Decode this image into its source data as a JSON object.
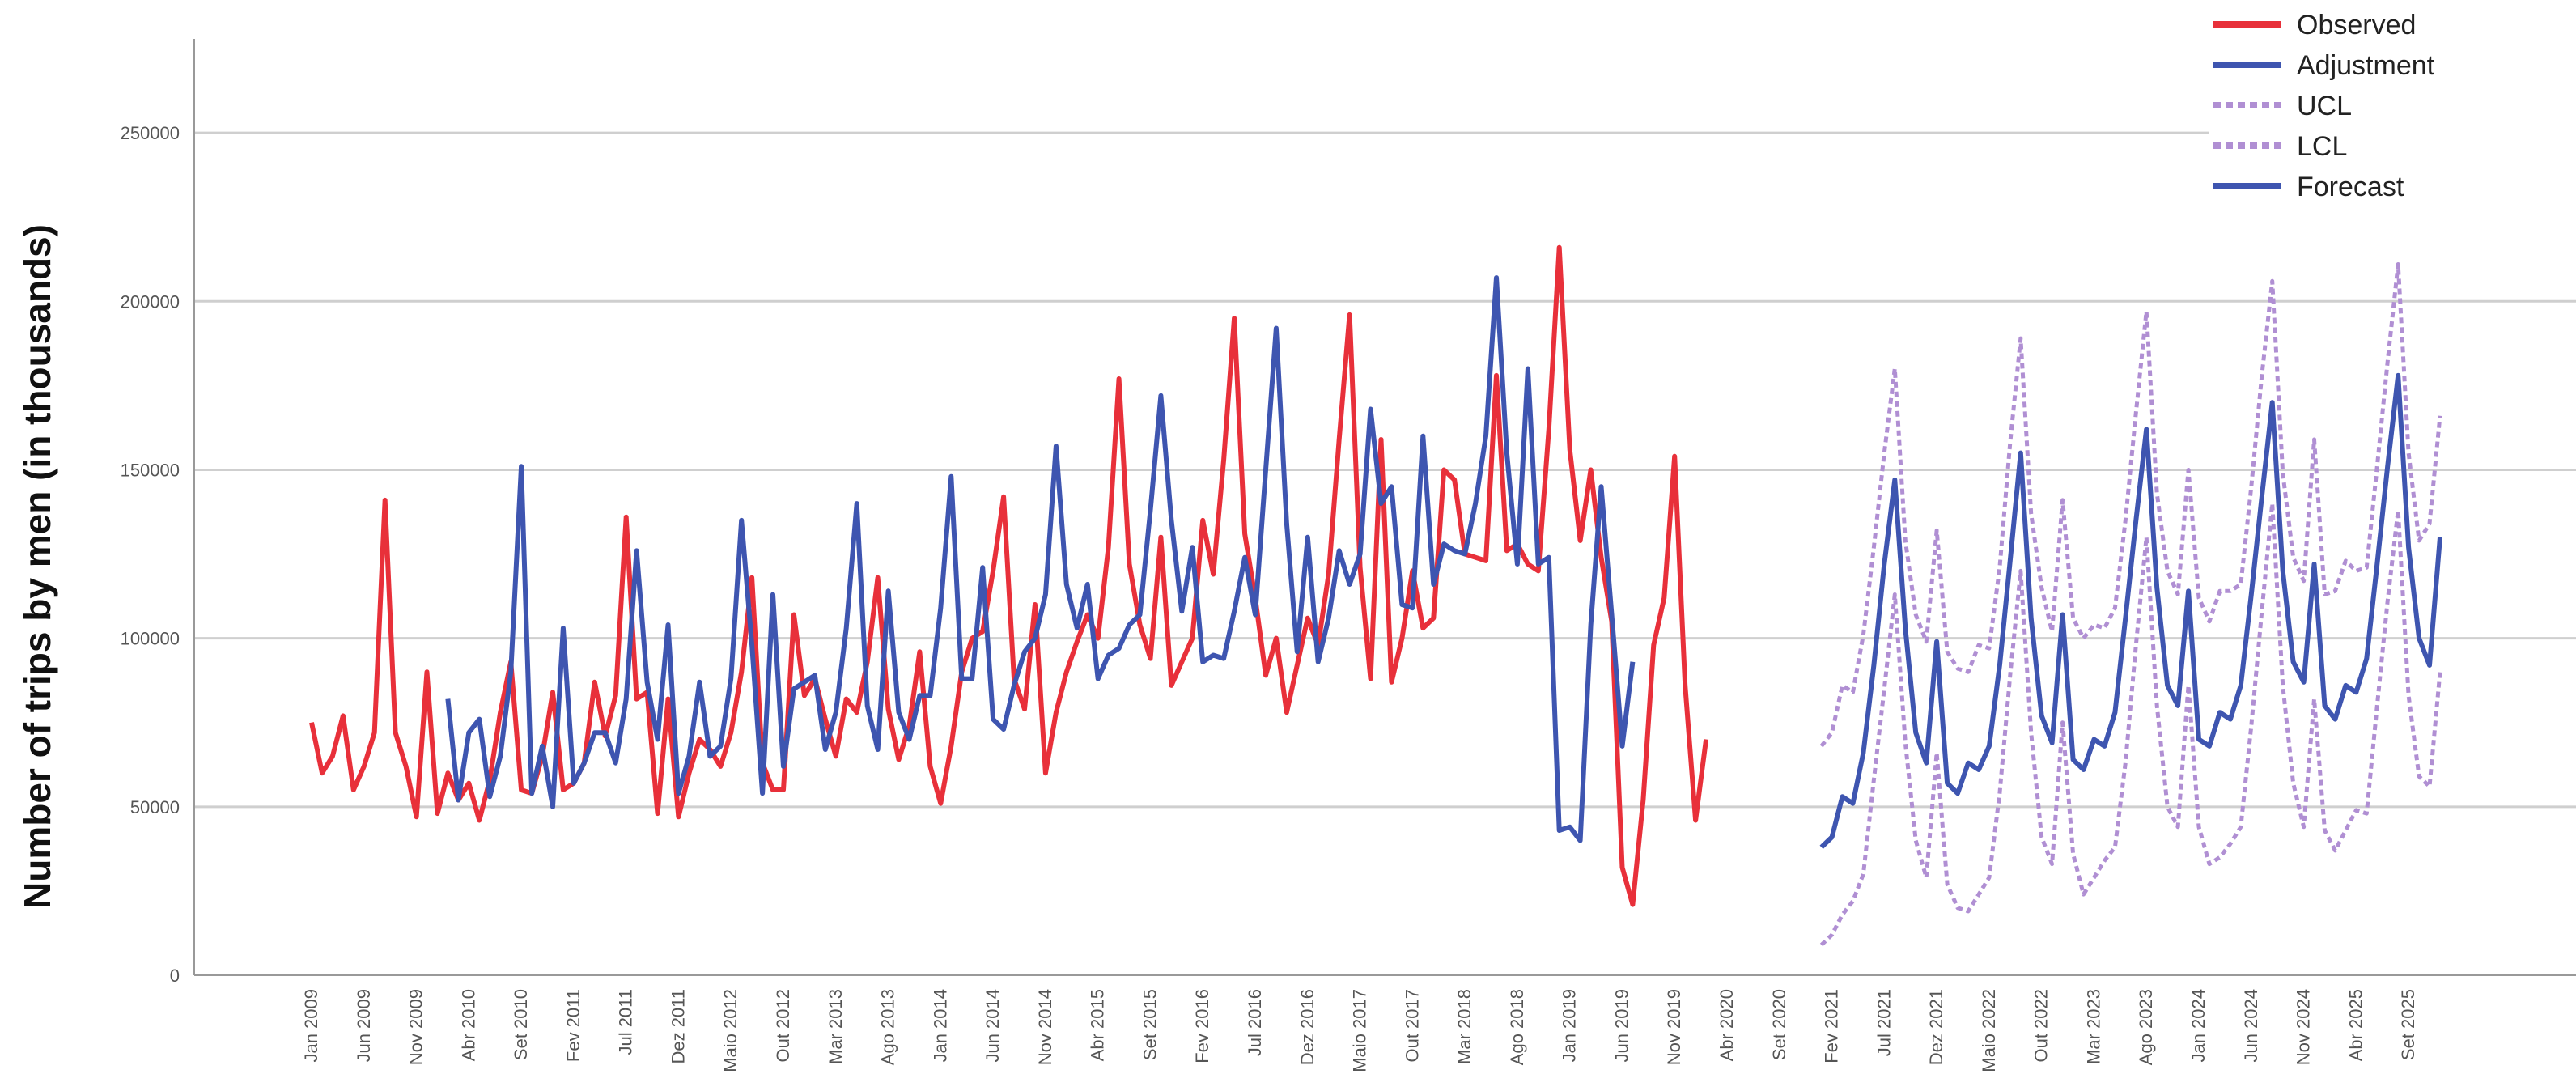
{
  "chart_data": {
    "type": "line",
    "title": "",
    "xlabel": "",
    "ylabel": "Number of trips by men (in thousands)",
    "ylim": [
      0,
      275000
    ],
    "y_ticks": [
      0,
      50000,
      100000,
      150000,
      200000,
      250000
    ],
    "y_tick_labels": [
      "0",
      "50000",
      "100000",
      "150000",
      "200000",
      "250000"
    ],
    "grid": "horizontal",
    "legend_position": "top-right",
    "x_start": "2009-01",
    "x_end": "2025-12",
    "x_tick_labels": [
      "Jan 2009",
      "Jun 2009",
      "Nov 2009",
      "Abr 2010",
      "Set 2010",
      "Fev 2011",
      "Jul 2011",
      "Dez 2011",
      "Maio 2012",
      "Out 2012",
      "Mar 2013",
      "Ago 2013",
      "Jan 2014",
      "Jun 2014",
      "Nov 2014",
      "Abr 2015",
      "Set 2015",
      "Fev 2016",
      "Jul 2016",
      "Dez 2016",
      "Maio 2017",
      "Out 2017",
      "Mar 2018",
      "Ago 2018",
      "Jan 2019",
      "Jun 2019",
      "Nov 2019",
      "Abr 2020",
      "Set 2020",
      "Fev 2021",
      "Jul 2021",
      "Dez 2021",
      "Maio 2022",
      "Out 2022",
      "Mar 2023",
      "Ago 2023",
      "Jan 2024",
      "Jun 2024",
      "Nov 2024",
      "Abr 2025",
      "Set 2025"
    ],
    "colors": {
      "observed": "#e8303a",
      "adjustment": "#3e55b0",
      "ucl": "#b08fd3",
      "lcl": "#b08fd3",
      "forecast": "#3e55b0"
    },
    "series": [
      {
        "name": "Observed",
        "style": "solid",
        "start": "2009-01",
        "values": [
          75000,
          60000,
          65000,
          77000,
          55000,
          62000,
          72000,
          141000,
          72000,
          62000,
          47000,
          90000,
          48000,
          60000,
          52000,
          57000,
          46000,
          58000,
          78000,
          93000,
          55000,
          54000,
          65000,
          84000,
          55000,
          57000,
          63000,
          87000,
          71000,
          83000,
          136000,
          82000,
          84000,
          48000,
          82000,
          47000,
          60000,
          70000,
          67000,
          62000,
          72000,
          90000,
          118000,
          63000,
          55000,
          55000,
          107000,
          83000,
          88000,
          76000,
          65000,
          82000,
          78000,
          93000,
          118000,
          79000,
          64000,
          74000,
          96000,
          62000,
          51000,
          68000,
          90000,
          100000,
          102000,
          120000,
          142000,
          88000,
          79000,
          110000,
          60000,
          78000,
          90000,
          99000,
          107000,
          100000,
          127000,
          177000,
          122000,
          104000,
          94000,
          130000,
          86000,
          93000,
          100000,
          135000,
          119000,
          153000,
          195000,
          131000,
          112000,
          89000,
          100000,
          78000,
          92000,
          106000,
          98000,
          119000,
          159000,
          196000,
          121000,
          88000,
          159000,
          87000,
          100000,
          120000,
          103000,
          106000,
          150000,
          147000,
          125000,
          124000,
          123000,
          178000,
          126000,
          128000,
          122000,
          120000,
          162000,
          216000,
          156000,
          129000,
          150000,
          124000,
          105000,
          32000,
          21000,
          52000,
          98000,
          112000,
          154000,
          86000,
          46000,
          70000
        ]
      },
      {
        "name": "Adjustment",
        "style": "solid",
        "start": "2010-02",
        "values": [
          82000,
          52000,
          72000,
          76000,
          53000,
          65000,
          90000,
          151000,
          54000,
          68000,
          50000,
          103000,
          57000,
          63000,
          72000,
          72000,
          63000,
          82000,
          126000,
          87000,
          70000,
          104000,
          54000,
          65000,
          87000,
          65000,
          68000,
          88000,
          135000,
          98000,
          54000,
          113000,
          62000,
          85000,
          87000,
          89000,
          67000,
          78000,
          103000,
          140000,
          80000,
          67000,
          114000,
          78000,
          70000,
          83000,
          83000,
          109000,
          148000,
          88000,
          88000,
          121000,
          76000,
          73000,
          86000,
          96000,
          100000,
          113000,
          157000,
          116000,
          103000,
          116000,
          88000,
          95000,
          97000,
          104000,
          107000,
          138000,
          172000,
          135000,
          108000,
          127000,
          93000,
          95000,
          94000,
          108000,
          124000,
          107000,
          150000,
          192000,
          134000,
          96000,
          130000,
          93000,
          106000,
          126000,
          116000,
          125000,
          168000,
          140000,
          145000,
          110000,
          109000,
          160000,
          116000,
          128000,
          126000,
          125000,
          140000,
          160000,
          207000,
          155000,
          122000,
          180000,
          122000,
          124000,
          43000,
          44000,
          40000,
          104000,
          145000,
          107000,
          68000,
          93000
        ]
      },
      {
        "name": "UCL",
        "style": "dotted",
        "start": "2021-01",
        "values": [
          68000,
          72000,
          86000,
          84000,
          101000,
          127000,
          155000,
          180000,
          129000,
          107000,
          99000,
          132000,
          96000,
          91000,
          90000,
          98000,
          97000,
          121000,
          158000,
          189000,
          137000,
          115000,
          102000,
          141000,
          106000,
          100000,
          104000,
          103000,
          109000,
          135000,
          167000,
          197000,
          143000,
          120000,
          113000,
          150000,
          112000,
          105000,
          114000,
          114000,
          116000,
          145000,
          178000,
          206000,
          149000,
          124000,
          117000,
          159000,
          113000,
          114000,
          123000,
          120000,
          121000,
          151000,
          182000,
          211000,
          155000,
          129000,
          134000,
          166000
        ]
      },
      {
        "name": "LCL",
        "style": "dotted",
        "start": "2021-01",
        "values": [
          9000,
          12000,
          18000,
          22000,
          30000,
          58000,
          85000,
          113000,
          69000,
          40000,
          29000,
          66000,
          27000,
          20000,
          19000,
          24000,
          29000,
          54000,
          89000,
          120000,
          72000,
          41000,
          33000,
          75000,
          36000,
          24000,
          29000,
          34000,
          38000,
          63000,
          98000,
          130000,
          80000,
          50000,
          44000,
          86000,
          44000,
          33000,
          35000,
          39000,
          44000,
          74000,
          108000,
          140000,
          86000,
          57000,
          44000,
          82000,
          43000,
          37000,
          43000,
          49000,
          48000,
          80000,
          111000,
          138000,
          83000,
          59000,
          56000,
          90000
        ]
      },
      {
        "name": "Forecast",
        "style": "solid",
        "start": "2021-01",
        "values": [
          38000,
          41000,
          53000,
          51000,
          66000,
          92000,
          122000,
          147000,
          103000,
          72000,
          63000,
          99000,
          57000,
          54000,
          63000,
          61000,
          68000,
          92000,
          123000,
          155000,
          106000,
          77000,
          69000,
          107000,
          64000,
          61000,
          70000,
          68000,
          78000,
          106000,
          135000,
          162000,
          115000,
          86000,
          80000,
          114000,
          70000,
          68000,
          78000,
          76000,
          86000,
          113000,
          142000,
          170000,
          120000,
          93000,
          87000,
          122000,
          80000,
          76000,
          86000,
          84000,
          94000,
          122000,
          151000,
          178000,
          127000,
          100000,
          92000,
          130000
        ]
      }
    ]
  }
}
